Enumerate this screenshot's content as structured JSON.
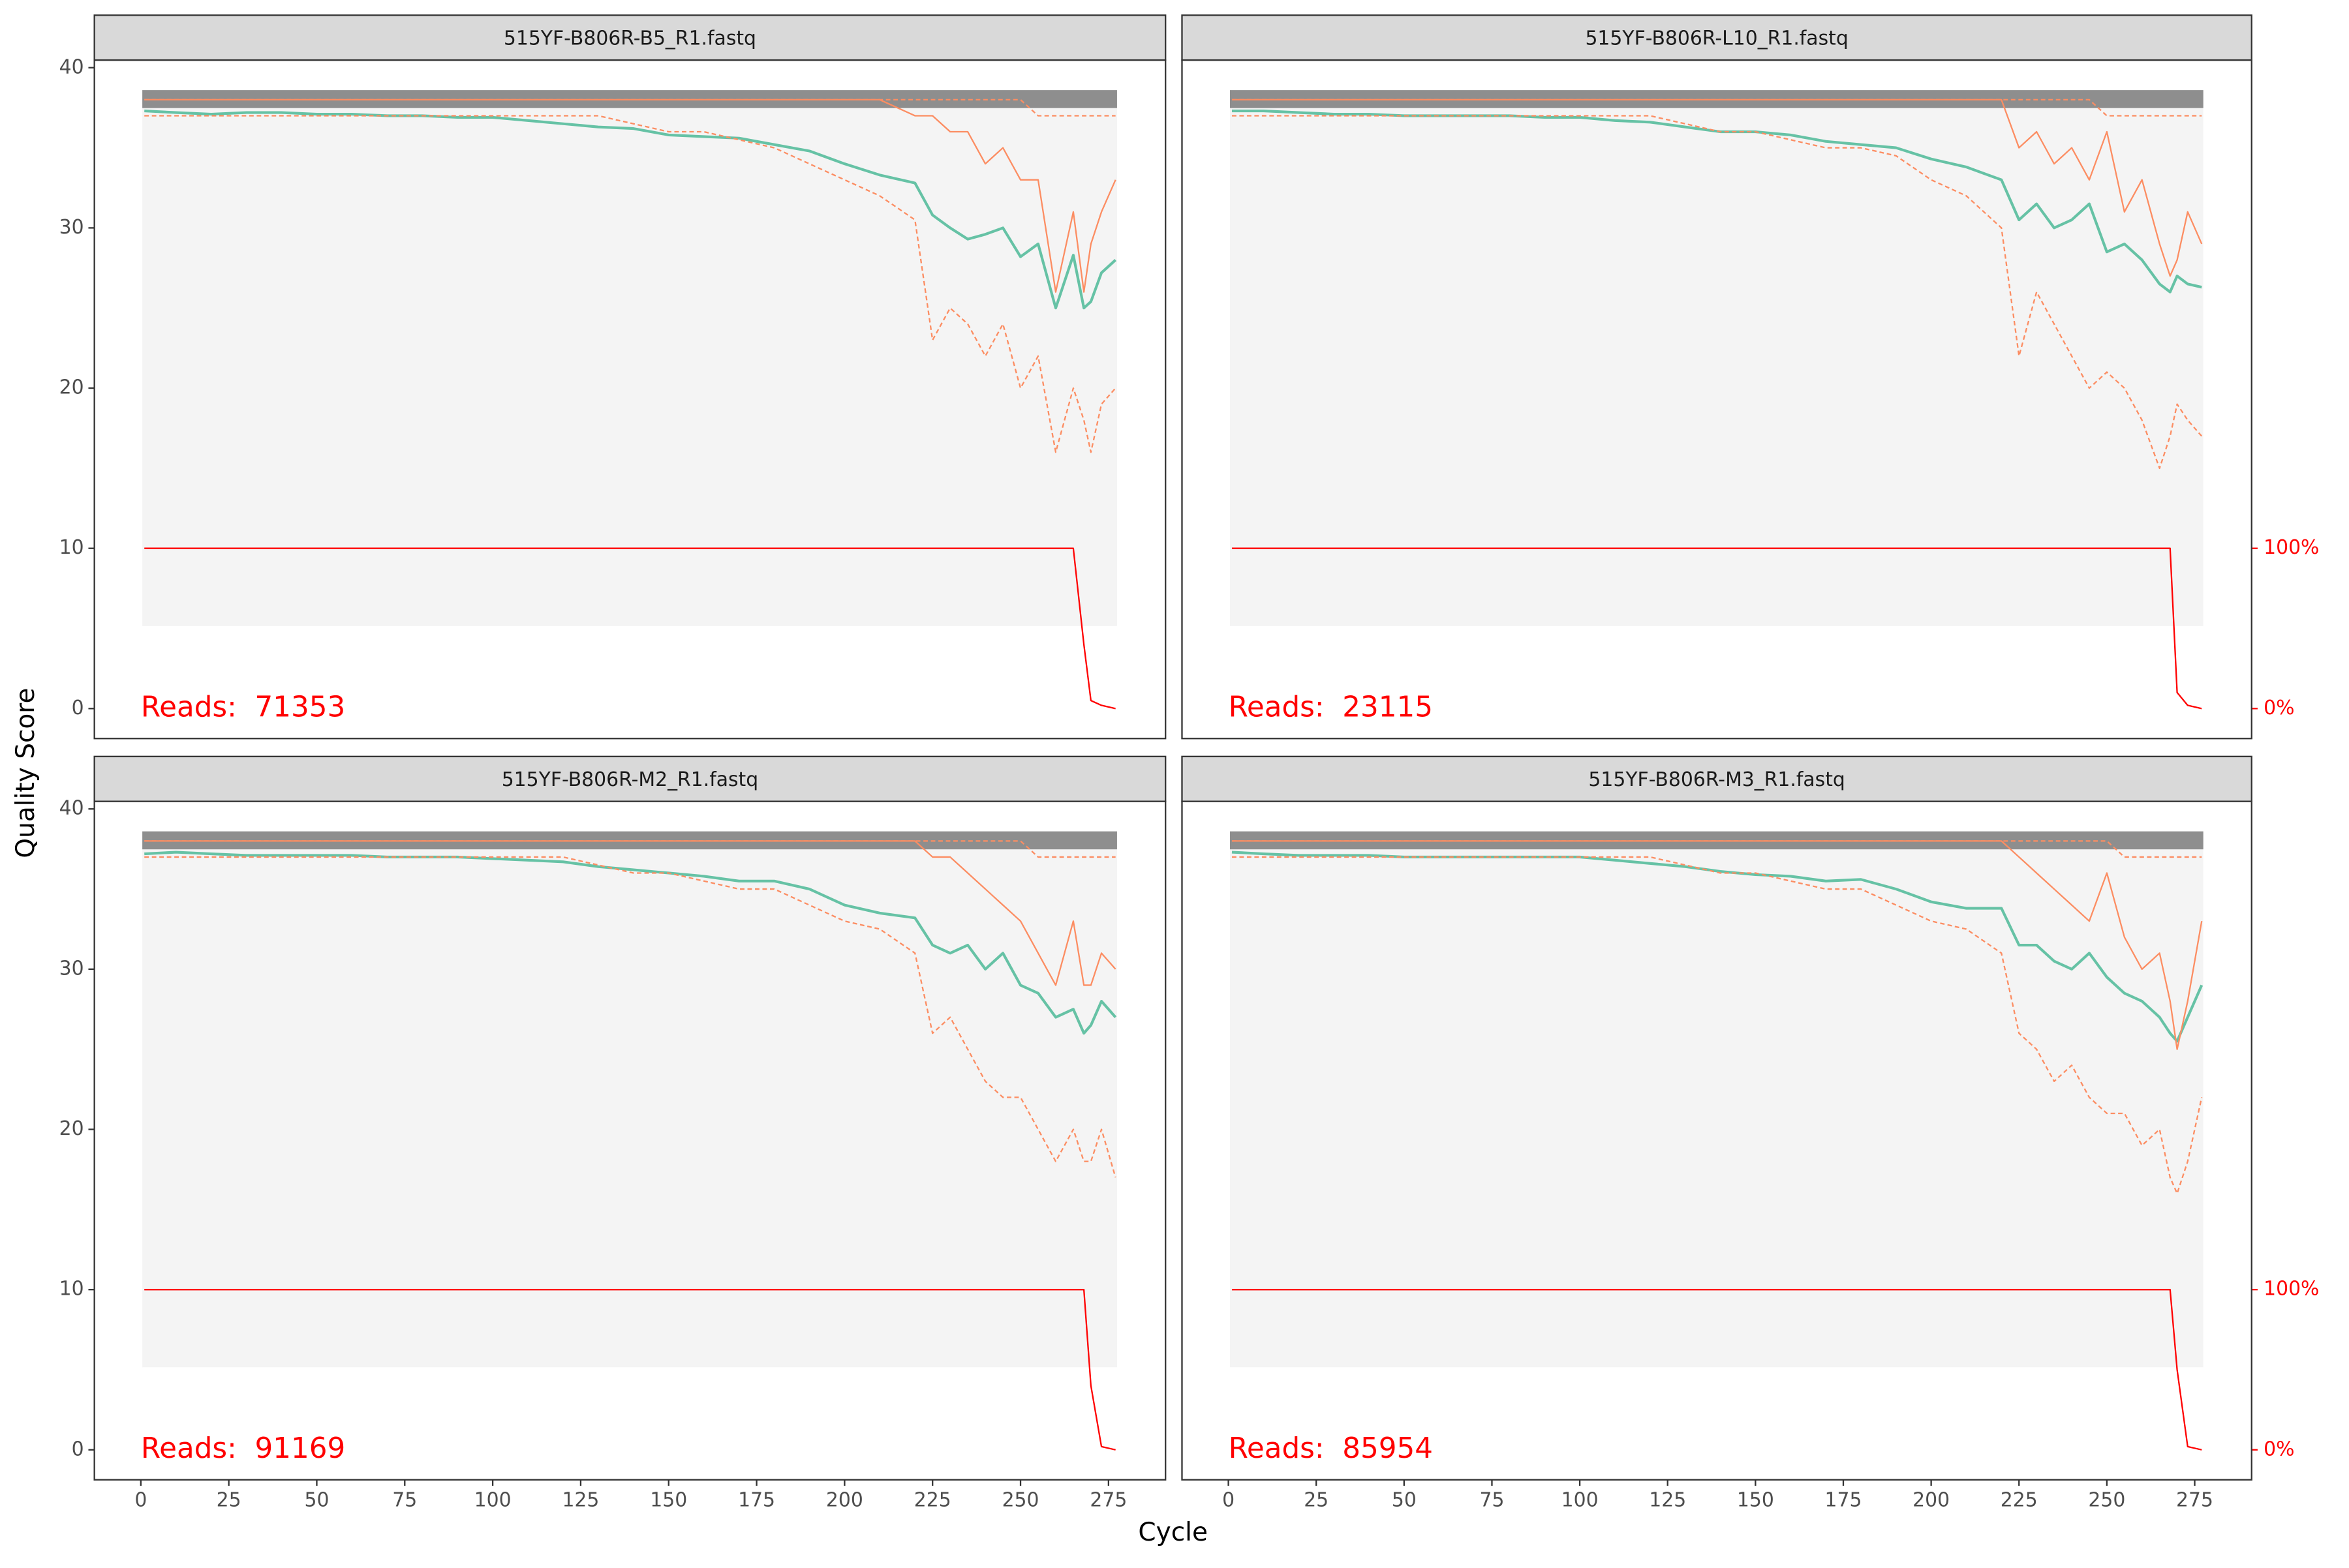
{
  "x_label": "Cycle",
  "y_label": "Quality Score",
  "chart_data": [
    {
      "type": "line",
      "title": "515YF-B806R-B5_R1.fastq",
      "annotation": "Reads:  71353",
      "xlim": [
        -13.2,
        291.2
      ],
      "ylim": [
        -1.87,
        40.47
      ],
      "yticks": [
        0,
        10,
        20,
        30,
        40
      ],
      "x": [
        1,
        10,
        20,
        30,
        40,
        50,
        60,
        70,
        80,
        90,
        100,
        110,
        120,
        130,
        140,
        150,
        160,
        170,
        180,
        190,
        200,
        210,
        220,
        225,
        230,
        235,
        240,
        245,
        250,
        255,
        260,
        265,
        268,
        270,
        273,
        277
      ],
      "series": [
        {
          "color": "#66c2a5",
          "values": [
            37.3,
            37.2,
            37.1,
            37.2,
            37.2,
            37.1,
            37.1,
            37.0,
            37.0,
            36.9,
            36.9,
            36.7,
            36.5,
            36.3,
            36.2,
            35.8,
            35.7,
            35.6,
            35.2,
            34.8,
            34.0,
            33.3,
            32.8,
            30.8,
            30.0,
            29.3,
            29.6,
            30.0,
            28.2,
            29.0,
            25.0,
            28.3,
            25.0,
            25.4,
            27.2,
            28.0
          ]
        },
        {
          "color": "#fc8d62",
          "values": [
            38,
            38,
            38,
            38,
            38,
            38,
            38,
            38,
            38,
            38,
            38,
            38,
            38,
            38,
            38,
            38,
            38,
            38,
            38,
            38,
            38,
            38,
            37,
            37,
            36,
            36,
            34,
            35,
            33,
            33,
            26,
            31,
            26,
            29,
            31,
            33
          ]
        },
        {
          "color": "#fc8d62",
          "linestyle": "dashed",
          "values": [
            37,
            37,
            37,
            37,
            37,
            37,
            37,
            37,
            37,
            37,
            37,
            37,
            37,
            37,
            36.5,
            36,
            36,
            35.5,
            35,
            34,
            33,
            32,
            30.5,
            23,
            25,
            24,
            22,
            24,
            20,
            22,
            16,
            20,
            18,
            16,
            19,
            20
          ]
        },
        {
          "color": "#fc8d62",
          "linestyle": "dashed",
          "values": [
            38,
            38,
            38,
            38,
            38,
            38,
            38,
            38,
            38,
            38,
            38,
            38,
            38,
            38,
            38,
            38,
            38,
            38,
            38,
            38,
            38,
            38,
            38,
            38,
            38,
            38,
            38,
            38,
            38,
            37,
            37,
            37,
            37,
            37,
            37,
            37
          ]
        },
        {
          "color": "#ff0000",
          "axis": "y2",
          "values": [
            100,
            100,
            100,
            100,
            100,
            100,
            100,
            100,
            100,
            100,
            100,
            100,
            100,
            100,
            100,
            100,
            100,
            100,
            100,
            100,
            100,
            100,
            100,
            100,
            100,
            100,
            100,
            100,
            100,
            100,
            100,
            100,
            40,
            5,
            2,
            0
          ]
        }
      ]
    },
    {
      "type": "line",
      "title": "515YF-B806R-L10_R1.fastq",
      "annotation": "Reads:  23115",
      "xlim": [
        -13.2,
        291.2
      ],
      "ylim": [
        -1.87,
        40.47
      ],
      "y2lim": [
        -18.7,
        404.7
      ],
      "y2ticks": [
        {
          "value": 0,
          "label": "0%"
        },
        {
          "value": 100,
          "label": "100%"
        }
      ],
      "x": [
        1,
        10,
        20,
        30,
        40,
        50,
        60,
        70,
        80,
        90,
        100,
        110,
        120,
        130,
        140,
        150,
        160,
        170,
        180,
        190,
        200,
        210,
        220,
        225,
        230,
        235,
        240,
        245,
        250,
        255,
        260,
        265,
        268,
        270,
        273,
        277
      ],
      "series": [
        {
          "color": "#66c2a5",
          "values": [
            37.3,
            37.3,
            37.2,
            37.1,
            37.1,
            37.0,
            37.0,
            37.0,
            37.0,
            36.9,
            36.9,
            36.7,
            36.6,
            36.3,
            36.0,
            36.0,
            35.8,
            35.4,
            35.2,
            35.0,
            34.3,
            33.8,
            33.0,
            30.5,
            31.5,
            30.0,
            30.5,
            31.5,
            28.5,
            29.0,
            28.0,
            26.5,
            26.0,
            27.0,
            26.5,
            26.3
          ]
        },
        {
          "color": "#fc8d62",
          "values": [
            38,
            38,
            38,
            38,
            38,
            38,
            38,
            38,
            38,
            38,
            38,
            38,
            38,
            38,
            38,
            38,
            38,
            38,
            38,
            38,
            38,
            38,
            38,
            35,
            36,
            34,
            35,
            33,
            36,
            31,
            33,
            29,
            27,
            28,
            31,
            29
          ]
        },
        {
          "color": "#fc8d62",
          "linestyle": "dashed",
          "values": [
            37,
            37,
            37,
            37,
            37,
            37,
            37,
            37,
            37,
            37,
            37,
            37,
            37,
            36.5,
            36,
            36,
            35.5,
            35,
            35,
            34.5,
            33,
            32,
            30,
            22,
            26,
            24,
            22,
            20,
            21,
            20,
            18,
            15,
            17,
            19,
            18,
            17
          ]
        },
        {
          "color": "#fc8d62",
          "linestyle": "dashed",
          "values": [
            38,
            38,
            38,
            38,
            38,
            38,
            38,
            38,
            38,
            38,
            38,
            38,
            38,
            38,
            38,
            38,
            38,
            38,
            38,
            38,
            38,
            38,
            38,
            38,
            38,
            38,
            38,
            38,
            37,
            37,
            37,
            37,
            37,
            37,
            37,
            37
          ]
        },
        {
          "color": "#ff0000",
          "axis": "y2",
          "values": [
            100,
            100,
            100,
            100,
            100,
            100,
            100,
            100,
            100,
            100,
            100,
            100,
            100,
            100,
            100,
            100,
            100,
            100,
            100,
            100,
            100,
            100,
            100,
            100,
            100,
            100,
            100,
            100,
            100,
            100,
            100,
            100,
            100,
            10,
            2,
            0
          ]
        }
      ]
    },
    {
      "type": "line",
      "title": "515YF-B806R-M2_R1.fastq",
      "annotation": "Reads:  91169",
      "xlim": [
        -13.2,
        291.2
      ],
      "ylim": [
        -1.87,
        40.47
      ],
      "yticks": [
        0,
        10,
        20,
        30,
        40
      ],
      "xticks": [
        0,
        25,
        50,
        75,
        100,
        125,
        150,
        175,
        200,
        225,
        250,
        275
      ],
      "x": [
        1,
        10,
        20,
        30,
        40,
        50,
        60,
        70,
        80,
        90,
        100,
        110,
        120,
        130,
        140,
        150,
        160,
        170,
        180,
        190,
        200,
        210,
        220,
        225,
        230,
        235,
        240,
        245,
        250,
        255,
        260,
        265,
        268,
        270,
        273,
        277
      ],
      "series": [
        {
          "color": "#66c2a5",
          "values": [
            37.2,
            37.3,
            37.2,
            37.1,
            37.1,
            37.1,
            37.1,
            37.0,
            37.0,
            37.0,
            36.9,
            36.8,
            36.7,
            36.4,
            36.2,
            36.0,
            35.8,
            35.5,
            35.5,
            35.0,
            34.0,
            33.5,
            33.2,
            31.5,
            31.0,
            31.5,
            30.0,
            31.0,
            29.0,
            28.5,
            27.0,
            27.5,
            26.0,
            26.5,
            28.0,
            27.0
          ]
        },
        {
          "color": "#fc8d62",
          "values": [
            38,
            38,
            38,
            38,
            38,
            38,
            38,
            38,
            38,
            38,
            38,
            38,
            38,
            38,
            38,
            38,
            38,
            38,
            38,
            38,
            38,
            38,
            38,
            37,
            37,
            36,
            35,
            34,
            33,
            31,
            29,
            33,
            29,
            29,
            31,
            30
          ]
        },
        {
          "color": "#fc8d62",
          "linestyle": "dashed",
          "values": [
            37,
            37,
            37,
            37,
            37,
            37,
            37,
            37,
            37,
            37,
            37,
            37,
            37,
            36.5,
            36,
            36,
            35.5,
            35,
            35,
            34,
            33,
            32.5,
            31,
            26,
            27,
            25,
            23,
            22,
            22,
            20,
            18,
            20,
            18,
            18,
            20,
            17
          ]
        },
        {
          "color": "#fc8d62",
          "linestyle": "dashed",
          "values": [
            38,
            38,
            38,
            38,
            38,
            38,
            38,
            38,
            38,
            38,
            38,
            38,
            38,
            38,
            38,
            38,
            38,
            38,
            38,
            38,
            38,
            38,
            38,
            38,
            38,
            38,
            38,
            38,
            38,
            37,
            37,
            37,
            37,
            37,
            37,
            37
          ]
        },
        {
          "color": "#ff0000",
          "axis": "y2",
          "values": [
            100,
            100,
            100,
            100,
            100,
            100,
            100,
            100,
            100,
            100,
            100,
            100,
            100,
            100,
            100,
            100,
            100,
            100,
            100,
            100,
            100,
            100,
            100,
            100,
            100,
            100,
            100,
            100,
            100,
            100,
            100,
            100,
            100,
            40,
            2,
            0
          ]
        }
      ]
    },
    {
      "type": "line",
      "title": "515YF-B806R-M3_R1.fastq",
      "annotation": "Reads:  85954",
      "xlim": [
        -13.2,
        291.2
      ],
      "ylim": [
        -1.87,
        40.47
      ],
      "y2lim": [
        -18.7,
        404.7
      ],
      "xticks": [
        0,
        25,
        50,
        75,
        100,
        125,
        150,
        175,
        200,
        225,
        250,
        275
      ],
      "y2ticks": [
        {
          "value": 0,
          "label": "0%"
        },
        {
          "value": 100,
          "label": "100%"
        }
      ],
      "x": [
        1,
        10,
        20,
        30,
        40,
        50,
        60,
        70,
        80,
        90,
        100,
        110,
        120,
        130,
        140,
        150,
        160,
        170,
        180,
        190,
        200,
        210,
        220,
        225,
        230,
        235,
        240,
        245,
        250,
        255,
        260,
        265,
        268,
        270,
        273,
        277
      ],
      "series": [
        {
          "color": "#66c2a5",
          "values": [
            37.3,
            37.2,
            37.1,
            37.1,
            37.1,
            37.0,
            37.0,
            37.0,
            37.0,
            37.0,
            37.0,
            36.8,
            36.6,
            36.4,
            36.1,
            35.9,
            35.8,
            35.5,
            35.6,
            35.0,
            34.2,
            33.8,
            33.8,
            31.5,
            31.5,
            30.5,
            30.0,
            31.0,
            29.5,
            28.5,
            28.0,
            27.0,
            26.0,
            25.5,
            27.0,
            29.0
          ]
        },
        {
          "color": "#fc8d62",
          "values": [
            38,
            38,
            38,
            38,
            38,
            38,
            38,
            38,
            38,
            38,
            38,
            38,
            38,
            38,
            38,
            38,
            38,
            38,
            38,
            38,
            38,
            38,
            38,
            37,
            36,
            35,
            34,
            33,
            36,
            32,
            30,
            31,
            28,
            25,
            28,
            33
          ]
        },
        {
          "color": "#fc8d62",
          "linestyle": "dashed",
          "values": [
            37,
            37,
            37,
            37,
            37,
            37,
            37,
            37,
            37,
            37,
            37,
            37,
            37,
            36.5,
            36,
            36,
            35.5,
            35,
            35,
            34,
            33,
            32.5,
            31,
            26,
            25,
            23,
            24,
            22,
            21,
            21,
            19,
            20,
            17,
            16,
            18,
            22
          ]
        },
        {
          "color": "#fc8d62",
          "linestyle": "dashed",
          "values": [
            38,
            38,
            38,
            38,
            38,
            38,
            38,
            38,
            38,
            38,
            38,
            38,
            38,
            38,
            38,
            38,
            38,
            38,
            38,
            38,
            38,
            38,
            38,
            38,
            38,
            38,
            38,
            38,
            38,
            37,
            37,
            37,
            37,
            37,
            37,
            37
          ]
        },
        {
          "color": "#ff0000",
          "axis": "y2",
          "values": [
            100,
            100,
            100,
            100,
            100,
            100,
            100,
            100,
            100,
            100,
            100,
            100,
            100,
            100,
            100,
            100,
            100,
            100,
            100,
            100,
            100,
            100,
            100,
            100,
            100,
            100,
            100,
            100,
            100,
            100,
            100,
            100,
            100,
            50,
            2,
            0
          ]
        }
      ]
    }
  ]
}
